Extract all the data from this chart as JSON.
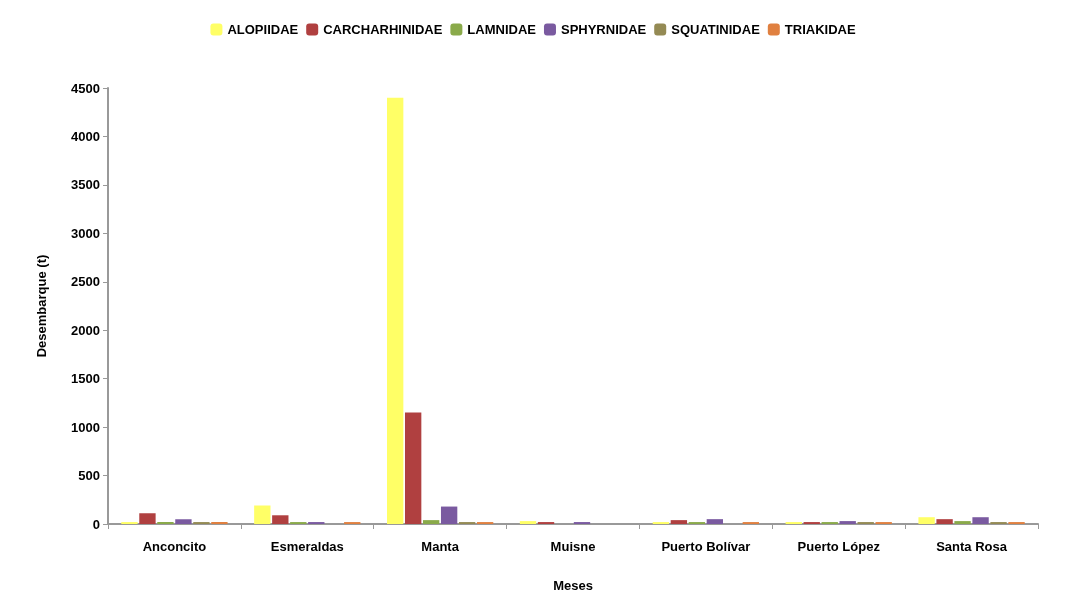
{
  "chart_data": {
    "type": "bar",
    "xlabel": "Meses",
    "ylabel": "Desembarque (t)",
    "categories": [
      "Anconcito",
      "Esmeraldas",
      "Manta",
      "Muisne",
      "Puerto Bolívar",
      "Puerto López",
      "Santa Rosa"
    ],
    "series": [
      {
        "name": "ALOPIIDAE",
        "color": "#ffff66",
        "values": [
          20,
          190,
          4400,
          30,
          20,
          20,
          70
        ]
      },
      {
        "name": "CARCHARHINIDAE",
        "color": "#b04040",
        "values": [
          110,
          90,
          1150,
          20,
          40,
          20,
          50
        ]
      },
      {
        "name": "LAMNIDAE",
        "color": "#8aaa4a",
        "values": [
          20,
          20,
          40,
          null,
          20,
          20,
          30
        ]
      },
      {
        "name": "SPHYRNIDAE",
        "color": "#7a5aa0",
        "values": [
          50,
          20,
          180,
          20,
          50,
          30,
          70
        ]
      },
      {
        "name": "SQUATINIDAE",
        "color": "#948a54",
        "values": [
          20,
          null,
          20,
          null,
          null,
          20,
          20
        ]
      },
      {
        "name": "TRIAKIDAE",
        "color": "#e08040",
        "values": [
          20,
          20,
          20,
          null,
          20,
          20,
          20
        ]
      }
    ],
    "ylim": [
      0,
      4500
    ],
    "yticks": [
      0,
      500,
      1000,
      1500,
      2000,
      2500,
      3000,
      3500,
      4000,
      4500
    ],
    "grid": false,
    "legend": "top"
  }
}
